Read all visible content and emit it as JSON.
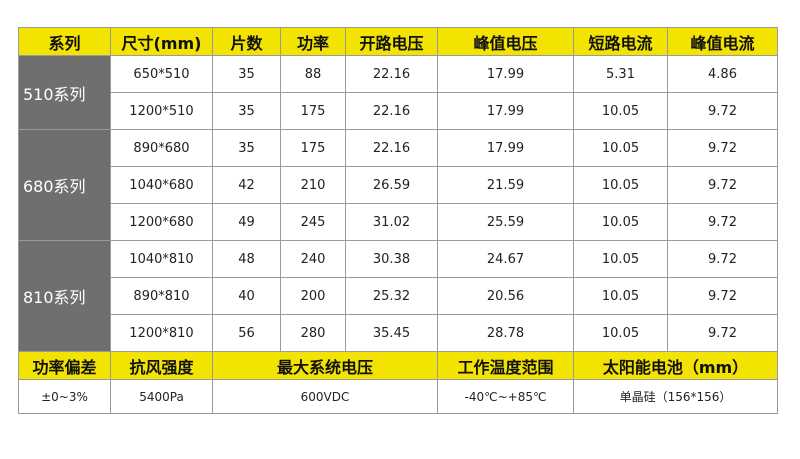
{
  "table": {
    "header": [
      "系列",
      "尺寸(mm)",
      "片数",
      "功率",
      "开路电压",
      "峰值电压",
      "短路电流",
      "峰值电流"
    ],
    "groups": [
      {
        "name": "510系列",
        "rows": [
          [
            "650*510",
            35,
            88,
            22.16,
            17.99,
            5.31,
            4.86
          ],
          [
            "1200*510",
            35,
            175,
            22.16,
            17.99,
            10.05,
            9.72
          ]
        ]
      },
      {
        "name": "680系列",
        "rows": [
          [
            "890*680",
            35,
            175,
            22.16,
            17.99,
            10.05,
            9.72
          ],
          [
            "1040*680",
            42,
            210,
            26.59,
            21.59,
            10.05,
            9.72
          ],
          [
            "1200*680",
            49,
            245,
            31.02,
            25.59,
            10.05,
            9.72
          ]
        ]
      },
      {
        "name": "810系列",
        "rows": [
          [
            "1040*810",
            48,
            240,
            30.38,
            24.67,
            10.05,
            9.72
          ],
          [
            "890*810",
            40,
            200,
            25.32,
            20.56,
            10.05,
            9.72
          ],
          [
            "1200*810",
            56,
            280,
            35.45,
            28.78,
            10.05,
            9.72
          ]
        ]
      }
    ],
    "footer_header": [
      "功率偏差",
      "抗风强度",
      "最大系统电压",
      "工作温度范围",
      "太阳能电池（mm）"
    ],
    "footer_values": [
      "±0~3%",
      "5400Pa",
      "600VDC",
      "-40℃~+85℃",
      "单晶硅（156*156）"
    ]
  }
}
